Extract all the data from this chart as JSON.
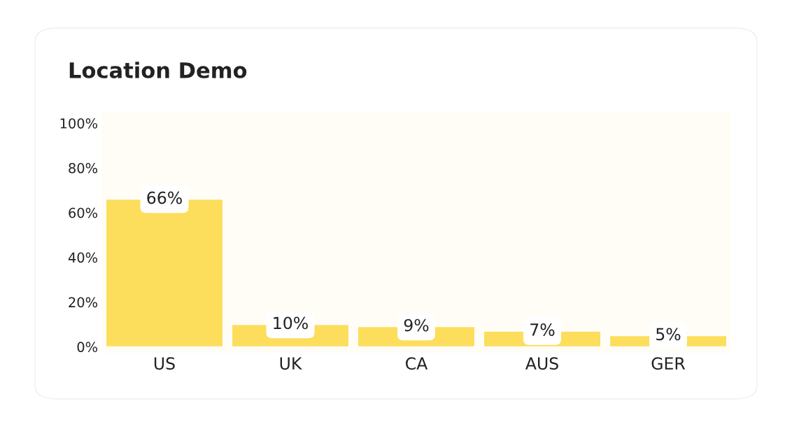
{
  "chart_data": {
    "type": "bar",
    "title": "Location Demo",
    "categories": [
      "US",
      "UK",
      "CA",
      "AUS",
      "GER"
    ],
    "values": [
      66,
      10,
      9,
      7,
      5
    ],
    "value_labels": [
      "66%",
      "10%",
      "9%",
      "7%",
      "5%"
    ],
    "color": "#fddd5c",
    "ylim": [
      -3,
      105
    ],
    "yticks": [
      {
        "value": 0,
        "label": "0%"
      },
      {
        "value": 20,
        "label": "20%"
      },
      {
        "value": 40,
        "label": "40%"
      },
      {
        "value": 60,
        "label": "60%"
      },
      {
        "value": 80,
        "label": "80%"
      },
      {
        "value": 100,
        "label": "100%"
      }
    ],
    "grid": false
  }
}
